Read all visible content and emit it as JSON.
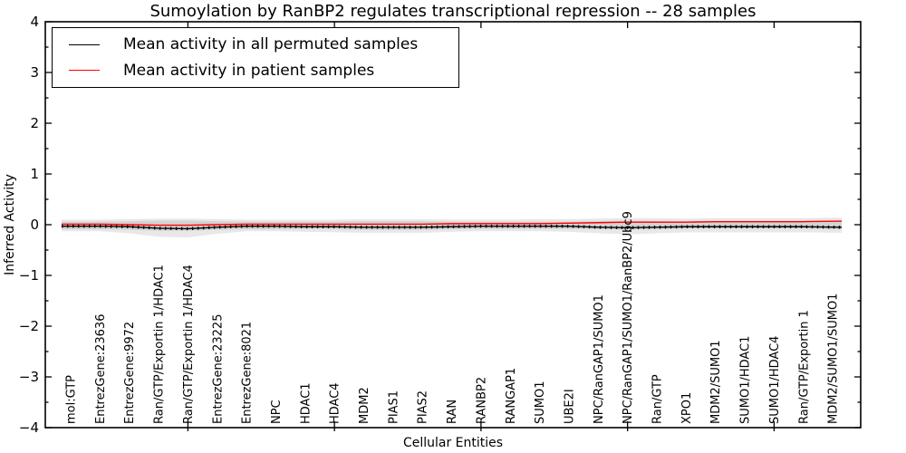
{
  "title": "Sumoylation by RanBP2 regulates transcriptional repression -- 28 samples",
  "legend": {
    "items": [
      {
        "label": "Mean activity in all permuted samples",
        "color": "#000000"
      },
      {
        "label": "Mean activity in patient samples",
        "color": "#ff0000"
      }
    ],
    "position": "upper left"
  },
  "chart_data": {
    "type": "line",
    "title": "Sumoylation by RanBP2 regulates transcriptional repression -- 28 samples",
    "xlabel": "Cellular Entities",
    "ylabel": "Inferred Activity",
    "ylim": [
      -4,
      4
    ],
    "y_major_ticks": [
      -4,
      -3,
      -2,
      -1,
      0,
      1,
      2,
      3,
      4
    ],
    "y_minor_step": 0.5,
    "x_major_tick_positions": [
      5,
      10,
      15,
      20,
      25
    ],
    "grid": false,
    "frame_color": "#000000",
    "band_color": "#000000",
    "band_opacity": 0.09,
    "categories": [
      "mol:GTP",
      "EntrezGene:23636",
      "EntrezGene:9972",
      "Ran/GTP/Exportin 1/HDAC1",
      "Ran/GTP/Exportin 1/HDAC4",
      "EntrezGene:23225",
      "EntrezGene:8021",
      "NPC",
      "HDAC1",
      "HDAC4",
      "MDM2",
      "PIAS1",
      "PIAS2",
      "RAN",
      "RANBP2",
      "RANGAP1",
      "SUMO1",
      "UBE2I",
      "NPC/RanGAP1/SUMO1",
      "NPC/RanGAP1/SUMO1/RanBP2/Ubc9",
      "Ran/GTP",
      "XPO1",
      "MDM2/SUMO1",
      "SUMO1/HDAC1",
      "SUMO1/HDAC4",
      "Ran/GTP/Exportin 1",
      "MDM2/SUMO1/SUMO1"
    ],
    "series": [
      {
        "name": "Mean activity in all permuted samples",
        "color": "#000000",
        "values": [
          -0.03,
          -0.03,
          -0.04,
          -0.07,
          -0.08,
          -0.05,
          -0.03,
          -0.03,
          -0.04,
          -0.04,
          -0.05,
          -0.05,
          -0.05,
          -0.04,
          -0.03,
          -0.03,
          -0.03,
          -0.03,
          -0.05,
          -0.06,
          -0.05,
          -0.04,
          -0.04,
          -0.04,
          -0.04,
          -0.04,
          -0.05
        ]
      },
      {
        "name": "Mean activity in patient samples",
        "color": "#ff0000",
        "values": [
          0.01,
          0.01,
          0.0,
          -0.01,
          -0.01,
          0.0,
          0.01,
          0.01,
          0.01,
          0.01,
          0.01,
          0.01,
          0.01,
          0.02,
          0.02,
          0.02,
          0.02,
          0.03,
          0.04,
          0.05,
          0.05,
          0.05,
          0.06,
          0.06,
          0.06,
          0.06,
          0.07
        ]
      }
    ],
    "bands": [
      {
        "name": "permuted-samples-spread",
        "upper": [
          0.06,
          0.06,
          0.07,
          0.08,
          0.08,
          0.07,
          0.06,
          0.06,
          0.06,
          0.06,
          0.07,
          0.07,
          0.07,
          0.06,
          0.06,
          0.06,
          0.06,
          0.06,
          0.07,
          0.08,
          0.07,
          0.06,
          0.06,
          0.06,
          0.06,
          0.06,
          0.07
        ],
        "lower": [
          -0.13,
          -0.13,
          -0.17,
          -0.24,
          -0.25,
          -0.18,
          -0.13,
          -0.13,
          -0.14,
          -0.15,
          -0.16,
          -0.16,
          -0.16,
          -0.14,
          -0.13,
          -0.13,
          -0.13,
          -0.14,
          -0.17,
          -0.19,
          -0.17,
          -0.15,
          -0.15,
          -0.15,
          -0.15,
          -0.15,
          -0.16
        ]
      },
      {
        "name": "patient-samples-spread",
        "upper": [
          0.1,
          0.1,
          0.11,
          0.12,
          0.12,
          0.11,
          0.1,
          0.1,
          0.1,
          0.1,
          0.11,
          0.11,
          0.11,
          0.1,
          0.1,
          0.1,
          0.11,
          0.11,
          0.12,
          0.13,
          0.13,
          0.12,
          0.13,
          0.13,
          0.13,
          0.13,
          0.14
        ],
        "lower": [
          -0.09,
          -0.09,
          -0.1,
          -0.12,
          -0.12,
          -0.1,
          -0.09,
          -0.09,
          -0.09,
          -0.09,
          -0.1,
          -0.1,
          -0.1,
          -0.09,
          -0.08,
          -0.08,
          -0.08,
          -0.08,
          -0.09,
          -0.1,
          -0.09,
          -0.08,
          -0.08,
          -0.08,
          -0.08,
          -0.08,
          -0.09
        ]
      }
    ]
  }
}
